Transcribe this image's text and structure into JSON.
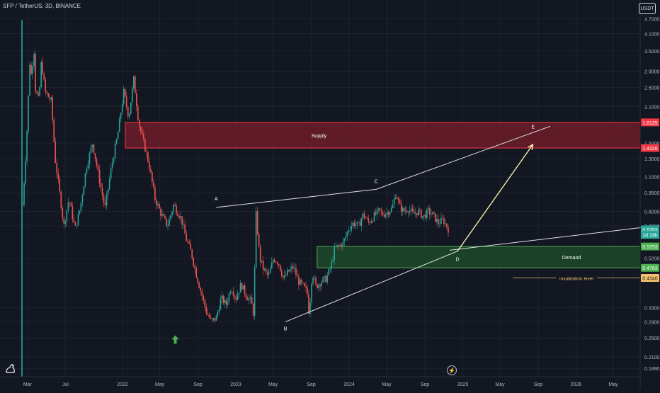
{
  "header": {
    "title": "SFP / TetherUS, 3D, BINANCE",
    "currency_button": "USDT"
  },
  "colors": {
    "background": "#131722",
    "up": "#26a69a",
    "down": "#ef5350",
    "supply_fill": "#7a1f2b",
    "supply_border": "#f23645",
    "demand_fill": "#1e4d2b",
    "demand_border": "#4caf50",
    "text": "#d1d4dc",
    "invalidation": "#f5c26b",
    "arrow": "#ffffb0",
    "green_marker": "#4caf50"
  },
  "chart_data": {
    "type": "candlestick",
    "scale": "log",
    "ylim": [
      0.175,
      5.2
    ],
    "y_ticks": [
      "4.7000",
      "4.1000",
      "3.5000",
      "2.9000",
      "2.5000",
      "2.1000",
      "1.5000",
      "1.3000",
      "1.1000",
      "0.9500",
      "0.8000",
      "0.7000",
      "0.5200",
      "0.3300",
      "0.2900",
      "0.2500",
      "0.2100",
      "0.1890"
    ],
    "x_labels": [
      "Mar",
      "Jul",
      "2022",
      "May",
      "Sep",
      "2023",
      "May",
      "Sep",
      "2024",
      "May",
      "Sep",
      "2025",
      "May",
      "Sep",
      "2026",
      "May"
    ],
    "price_tags": [
      {
        "text": "1.8125",
        "value": 1.8125,
        "kind": "supply"
      },
      {
        "text": "1.4326",
        "value": 1.4326,
        "kind": "supply"
      },
      {
        "text": "0.6783",
        "value": 0.6783,
        "kind": "last"
      },
      {
        "text": "1d 19h",
        "value": 0.645,
        "kind": "timer"
      },
      {
        "text": "0.5793",
        "value": 0.5793,
        "kind": "demand"
      },
      {
        "text": "0.4763",
        "value": 0.4763,
        "kind": "demand"
      },
      {
        "text": "0.4340",
        "value": 0.434,
        "kind": "invalidation"
      }
    ],
    "zones": {
      "supply": {
        "label": "Supply",
        "top": 1.8125,
        "bottom": 1.4326
      },
      "demand": {
        "label": "Demand",
        "top": 0.5793,
        "bottom": 0.4763
      }
    },
    "invalidation": {
      "label": "invalidation level",
      "value": 0.434
    },
    "wave_points": [
      {
        "label": "A",
        "date": "2022-10-30",
        "value": 0.83
      },
      {
        "label": "B",
        "date": "2023-06-10",
        "value": 0.29
      },
      {
        "label": "C",
        "date": "2024-03-28",
        "value": 0.98
      },
      {
        "label": "D",
        "date": "2024-12-15",
        "value": 0.555
      },
      {
        "label": "E",
        "date": "2025-08-20",
        "value": 1.65
      }
    ],
    "trendlines": [
      {
        "from": {
          "date": "2022-10-30",
          "value": 0.83
        },
        "to": {
          "date": "2024-03-28",
          "value": 0.98
        }
      },
      {
        "from": {
          "date": "2024-03-28",
          "value": 0.98
        },
        "to": {
          "date": "2025-10-10",
          "value": 1.75
        }
      },
      {
        "from": {
          "date": "2023-06-10",
          "value": 0.29
        },
        "to": {
          "date": "2024-12-15",
          "value": 0.555
        }
      },
      {
        "from": {
          "date": "2024-11-20",
          "value": 0.56
        },
        "to": {
          "date": "2026-08-01",
          "value": 0.69
        }
      }
    ],
    "projection_arrow": {
      "from": {
        "date": "2024-12-15",
        "value": 0.555
      },
      "to": {
        "date": "2025-08-15",
        "value": 1.48
      }
    },
    "markers": [
      {
        "type": "up-arrow",
        "date": "2022-06-20",
        "value": 0.245
      }
    ],
    "price_path": [
      [
        0.9,
        0.85
      ],
      [
        1.2,
        1.5
      ],
      [
        1.5,
        3.4
      ],
      [
        1.5,
        2.6
      ],
      [
        1.9,
        3.8
      ],
      [
        1.7,
        2.7
      ],
      [
        2.2,
        2.2
      ],
      [
        2.4,
        3.2
      ],
      [
        2.7,
        2.4
      ],
      [
        3.2,
        2.2
      ],
      [
        3.5,
        1.3
      ],
      [
        3.8,
        1.0
      ],
      [
        4.2,
        0.7
      ],
      [
        4.6,
        0.9
      ],
      [
        5.1,
        0.68
      ],
      [
        5.5,
        0.82
      ],
      [
        6.0,
        1.2
      ],
      [
        6.5,
        1.5
      ],
      [
        7.0,
        1.1
      ],
      [
        7.5,
        0.82
      ],
      [
        8.0,
        1.2
      ],
      [
        8.5,
        1.6
      ],
      [
        9.0,
        2.4
      ],
      [
        9.4,
        1.9
      ],
      [
        9.8,
        2.7
      ],
      [
        10.2,
        1.8
      ],
      [
        10.6,
        1.5
      ],
      [
        11.0,
        1.25
      ],
      [
        11.5,
        0.9
      ],
      [
        12.0,
        0.78
      ],
      [
        12.5,
        0.7
      ],
      [
        13.0,
        0.85
      ],
      [
        13.6,
        0.75
      ],
      [
        14.0,
        0.62
      ],
      [
        14.4,
        0.55
      ],
      [
        14.8,
        0.45
      ],
      [
        15.2,
        0.38
      ],
      [
        15.6,
        0.32
      ],
      [
        16.0,
        0.29
      ],
      [
        16.4,
        0.3
      ],
      [
        16.8,
        0.36
      ],
      [
        17.2,
        0.34
      ],
      [
        17.6,
        0.4
      ],
      [
        18.0,
        0.36
      ],
      [
        18.4,
        0.41
      ],
      [
        18.8,
        0.37
      ],
      [
        19.2,
        0.35
      ],
      [
        19.4,
        0.31
      ],
      [
        19.6,
        0.78
      ],
      [
        19.9,
        0.52
      ],
      [
        20.2,
        0.47
      ],
      [
        20.6,
        0.44
      ],
      [
        21.0,
        0.52
      ],
      [
        21.4,
        0.5
      ],
      [
        21.8,
        0.43
      ],
      [
        22.2,
        0.46
      ],
      [
        22.6,
        0.48
      ],
      [
        23.0,
        0.42
      ],
      [
        23.4,
        0.4
      ],
      [
        23.7,
        0.38
      ],
      [
        23.85,
        0.31
      ],
      [
        24.1,
        0.46
      ],
      [
        24.4,
        0.4
      ],
      [
        24.8,
        0.42
      ],
      [
        25.2,
        0.43
      ],
      [
        25.6,
        0.48
      ],
      [
        25.9,
        0.57
      ],
      [
        26.2,
        0.58
      ],
      [
        26.6,
        0.6
      ],
      [
        27.0,
        0.68
      ],
      [
        27.4,
        0.72
      ],
      [
        27.8,
        0.7
      ],
      [
        28.2,
        0.78
      ],
      [
        28.6,
        0.72
      ],
      [
        29.0,
        0.76
      ],
      [
        29.4,
        0.8
      ],
      [
        29.8,
        0.78
      ],
      [
        30.2,
        0.8
      ],
      [
        30.5,
        0.82
      ],
      [
        30.8,
        0.95
      ],
      [
        31.1,
        0.84
      ],
      [
        31.4,
        0.8
      ],
      [
        31.8,
        0.82
      ],
      [
        32.2,
        0.78
      ],
      [
        32.6,
        0.8
      ],
      [
        33.0,
        0.76
      ],
      [
        33.4,
        0.8
      ],
      [
        33.8,
        0.77
      ],
      [
        34.2,
        0.72
      ],
      [
        34.6,
        0.74
      ],
      [
        35.0,
        0.68
      ]
    ]
  }
}
